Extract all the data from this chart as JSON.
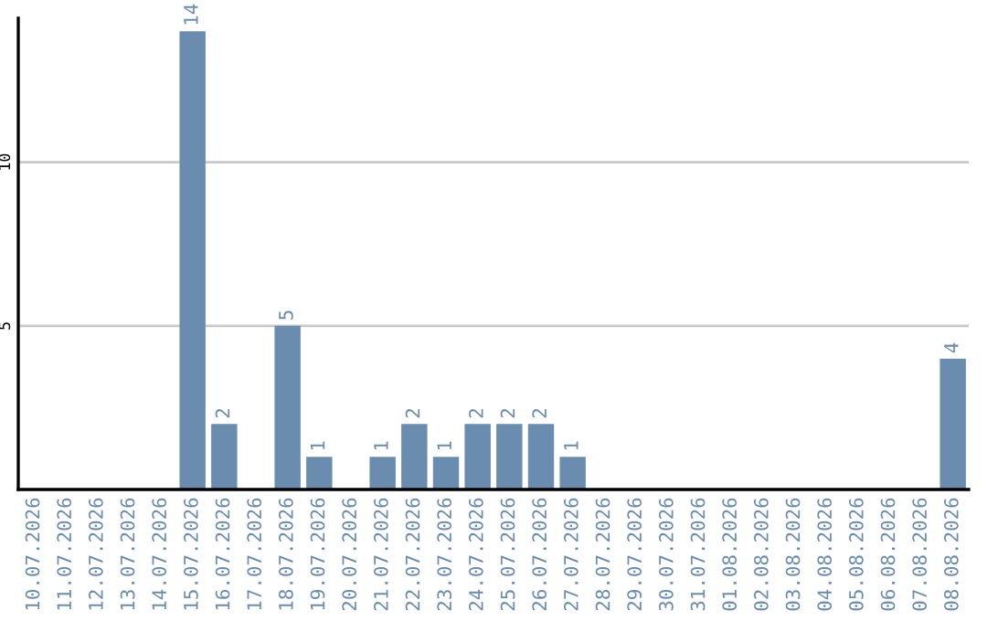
{
  "chart_data": {
    "type": "bar",
    "categories": [
      "10.07.2026",
      "11.07.2026",
      "12.07.2026",
      "13.07.2026",
      "14.07.2026",
      "15.07.2026",
      "16.07.2026",
      "17.07.2026",
      "18.07.2026",
      "19.07.2026",
      "20.07.2026",
      "21.07.2026",
      "22.07.2026",
      "23.07.2026",
      "24.07.2026",
      "25.07.2026",
      "26.07.2026",
      "27.07.2026",
      "28.07.2026",
      "29.07.2026",
      "30.07.2026",
      "31.07.2026",
      "01.08.2026",
      "02.08.2026",
      "03.08.2026",
      "04.08.2026",
      "05.08.2026",
      "06.08.2026",
      "07.08.2026",
      "08.08.2026"
    ],
    "values": [
      0,
      0,
      0,
      0,
      0,
      14,
      2,
      0,
      5,
      1,
      0,
      1,
      2,
      1,
      2,
      2,
      2,
      1,
      0,
      0,
      0,
      0,
      0,
      0,
      0,
      0,
      0,
      0,
      0,
      4
    ],
    "value_labels": [
      null,
      null,
      null,
      null,
      null,
      "14",
      "2",
      null,
      "5",
      "1",
      null,
      "1",
      "2",
      "1",
      "2",
      "2",
      "2",
      "1",
      null,
      null,
      null,
      null,
      null,
      null,
      null,
      null,
      null,
      null,
      null,
      "4"
    ],
    "color": "#6a8caf",
    "ylim": [
      0,
      14.4
    ],
    "yticks": [
      5,
      10
    ],
    "grid": "y"
  }
}
